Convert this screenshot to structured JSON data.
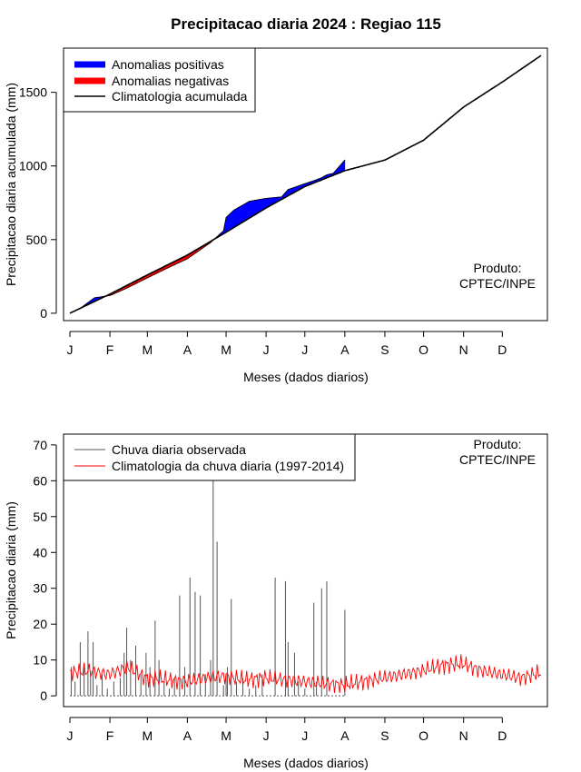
{
  "figure": {
    "title": "Precipitacao diaria 2024 : Regiao 115"
  },
  "chart_data": [
    {
      "type": "area",
      "name": "accumulated",
      "ylabel": "Precipitacao diaria acumulada (mm)",
      "xlabel": "Meses (dados diarios)",
      "months": [
        "J",
        "F",
        "M",
        "A",
        "M",
        "J",
        "J",
        "A",
        "S",
        "O",
        "N",
        "D"
      ],
      "xlim": [
        1,
        366
      ],
      "ylim": [
        -50,
        1800
      ],
      "yticks": [
        0,
        500,
        1000,
        1500
      ],
      "legend": [
        {
          "label": "Anomalias positivas",
          "color": "#0000ff"
        },
        {
          "label": "Anomalias negativas",
          "color": "#ff0000"
        },
        {
          "label": "Climatologia acumulada",
          "color": "#000000"
        }
      ],
      "note": [
        "Produto:",
        "CPTEC/INPE"
      ],
      "climatology_day": [
        1,
        32,
        61,
        92,
        122,
        153,
        183,
        214,
        245,
        275,
        306,
        336,
        366
      ],
      "climatology_acc": [
        0,
        130,
        260,
        395,
        550,
        715,
        860,
        968,
        1040,
        1175,
        1400,
        1570,
        1750
      ],
      "observed_day": [
        1,
        10,
        20,
        32,
        45,
        61,
        75,
        92,
        110,
        120,
        122,
        128,
        140,
        153,
        165,
        170,
        183,
        190,
        196,
        200,
        205,
        210,
        214
      ],
      "observed_acc": [
        0,
        40,
        105,
        120,
        170,
        240,
        300,
        370,
        480,
        560,
        650,
        700,
        760,
        780,
        790,
        840,
        880,
        900,
        920,
        940,
        950,
        1000,
        1040
      ]
    },
    {
      "type": "bar",
      "name": "daily",
      "ylabel": "Precipitacao diaria (mm)",
      "xlabel": "Meses (dados diarios)",
      "months": [
        "J",
        "F",
        "M",
        "A",
        "M",
        "J",
        "J",
        "A",
        "S",
        "O",
        "N",
        "D"
      ],
      "xlim": [
        1,
        366
      ],
      "ylim": [
        -3,
        73
      ],
      "yticks": [
        0,
        10,
        20,
        30,
        40,
        50,
        60,
        70
      ],
      "legend": [
        {
          "label": "Chuva diaria observada",
          "color": "#555555"
        },
        {
          "label": "Climatologia da chuva diaria (1997-2014)",
          "color": "#ff0000"
        }
      ],
      "note": [
        "Produto:",
        "CPTEC/INPE"
      ],
      "observed_days": [
        2,
        5,
        9,
        12,
        15,
        17,
        19,
        22,
        26,
        30,
        35,
        40,
        43,
        45,
        48,
        52,
        56,
        60,
        63,
        67,
        70,
        74,
        78,
        82,
        86,
        90,
        94,
        98,
        102,
        106,
        110,
        112,
        115,
        120,
        122,
        123,
        126,
        130,
        135,
        140,
        145,
        150,
        160,
        168,
        170,
        175,
        178,
        183,
        190,
        192,
        196,
        200,
        214
      ],
      "observed_values": [
        8,
        4,
        15,
        9,
        18,
        7,
        15,
        3,
        6,
        2,
        4,
        5,
        12,
        19,
        10,
        14,
        6,
        12,
        8,
        21,
        10,
        4,
        2,
        5,
        28,
        8,
        33,
        29,
        28,
        6,
        10,
        61,
        43,
        3,
        6,
        8,
        27,
        4,
        5,
        2,
        3,
        6,
        33,
        32,
        15,
        12,
        4,
        2,
        26,
        4,
        30,
        32,
        24
      ],
      "climatology_days": [
        1,
        15,
        31,
        46,
        60,
        76,
        91,
        106,
        121,
        136,
        152,
        167,
        182,
        197,
        213,
        228,
        244,
        259,
        274,
        289,
        305,
        320,
        335,
        350,
        366
      ],
      "climatology_values": [
        6.5,
        7,
        6,
        8,
        5,
        4.5,
        4,
        5,
        5.5,
        4.5,
        5,
        4.5,
        4,
        3.5,
        3,
        4,
        5,
        6,
        7,
        8.5,
        9,
        7,
        6,
        5,
        6.5
      ]
    }
  ]
}
